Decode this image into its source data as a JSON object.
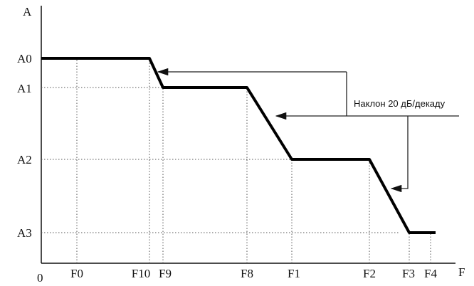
{
  "axes": {
    "y_label": "A",
    "x_label": "F",
    "origin": "0"
  },
  "y_levels": [
    "A0",
    "A1",
    "A2",
    "A3"
  ],
  "x_marks": [
    "F0",
    "F10",
    "F9",
    "F8",
    "F1",
    "F2",
    "F3",
    "F4"
  ],
  "annotation": "Наклон 20 дБ/декаду"
}
